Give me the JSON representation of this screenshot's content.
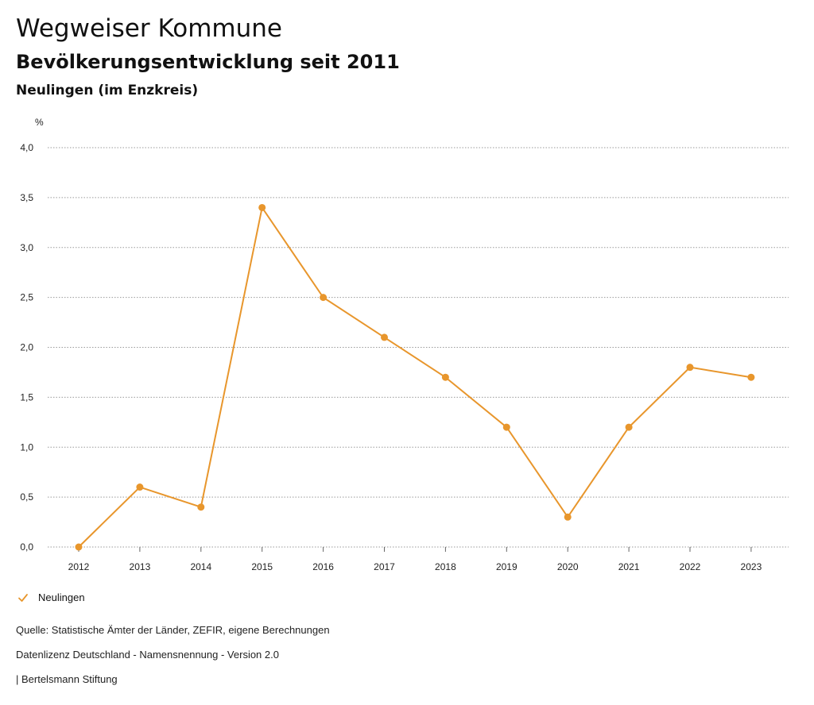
{
  "header": {
    "title": "Wegweiser Kommune",
    "subtitle": "Bevölkerungsentwicklung seit 2011",
    "region": "Neulingen (im Enzkreis)"
  },
  "colors": {
    "series": "#e8962c",
    "grid": "#9a9a9a"
  },
  "chart_data": {
    "type": "line",
    "title": "Bevölkerungsentwicklung seit 2011",
    "ylabel": "%",
    "xlabel": "",
    "ylim": [
      0,
      4
    ],
    "yticks": [
      "0,0",
      "0,5",
      "1,0",
      "1,5",
      "2,0",
      "2,5",
      "3,0",
      "3,5",
      "4,0"
    ],
    "categories": [
      "2012",
      "2013",
      "2014",
      "2015",
      "2016",
      "2017",
      "2018",
      "2019",
      "2020",
      "2021",
      "2022",
      "2023"
    ],
    "series": [
      {
        "name": "Neulingen",
        "values": [
          0.0,
          0.6,
          0.4,
          3.4,
          2.5,
          2.1,
          1.7,
          1.2,
          0.3,
          1.2,
          1.8,
          1.7
        ]
      }
    ],
    "legend": "bottom-left",
    "grid": true
  },
  "legend": {
    "label": "Neulingen"
  },
  "footer": {
    "source": "Quelle: Statistische Ämter der Länder, ZEFIR, eigene Berechnungen",
    "license": "Datenlizenz Deutschland - Namensnennung - Version 2.0",
    "publisher": "| Bertelsmann Stiftung"
  }
}
